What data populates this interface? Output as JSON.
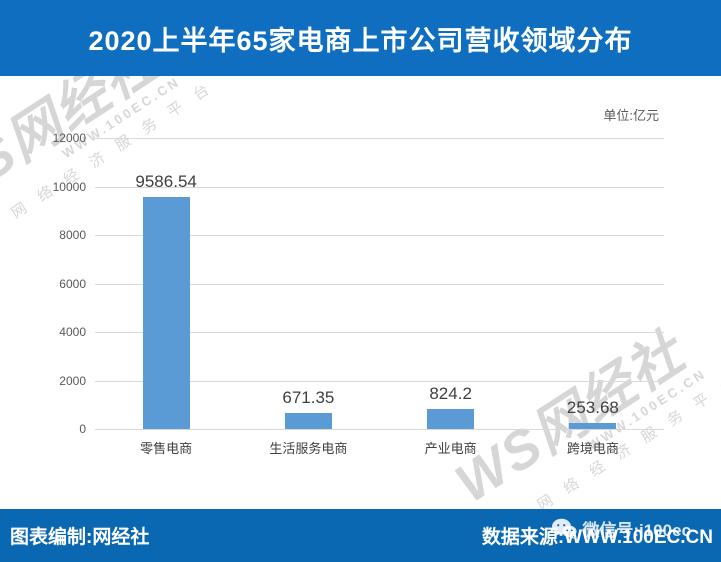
{
  "header": {
    "title": "2020上半年65家电商上市公司营收领域分布"
  },
  "chart_data": {
    "type": "bar",
    "title": "2020上半年65家电商上市公司营收领域分布",
    "unit_label": "单位:亿元",
    "categories": [
      "零售电商",
      "生活服务电商",
      "产业电商",
      "跨境电商"
    ],
    "values": [
      9586.54,
      671.35,
      824.2,
      253.68
    ],
    "value_labels": [
      "9586.54",
      "671.35",
      "824.2",
      "253.68"
    ],
    "ylim": [
      0,
      12000
    ],
    "ytick_interval": 2000,
    "yticks": [
      "12000",
      "10000",
      "8000",
      "6000",
      "4000",
      "2000",
      "0"
    ],
    "grid": true,
    "legend": false,
    "bar_color": "#5b9bd5",
    "xlabel": "",
    "ylabel": ""
  },
  "watermark": {
    "brand": "WS网经社",
    "url": "WWW.100EC.CN",
    "slogan": "网络经济服务平台"
  },
  "footer": {
    "left": "图表编制:网经社",
    "right": "数据来源:WWW.100EC.CN",
    "wechat_label": "微信号:i100ec"
  },
  "colors": {
    "header_bg": "#0f6ec0",
    "footer_bg": "#0a67b2",
    "bar": "#5b9bd5",
    "gridline": "#d9d9d9",
    "tick_text": "#595959",
    "value_text": "#3f3f3f",
    "title_text": "#ffffff"
  }
}
